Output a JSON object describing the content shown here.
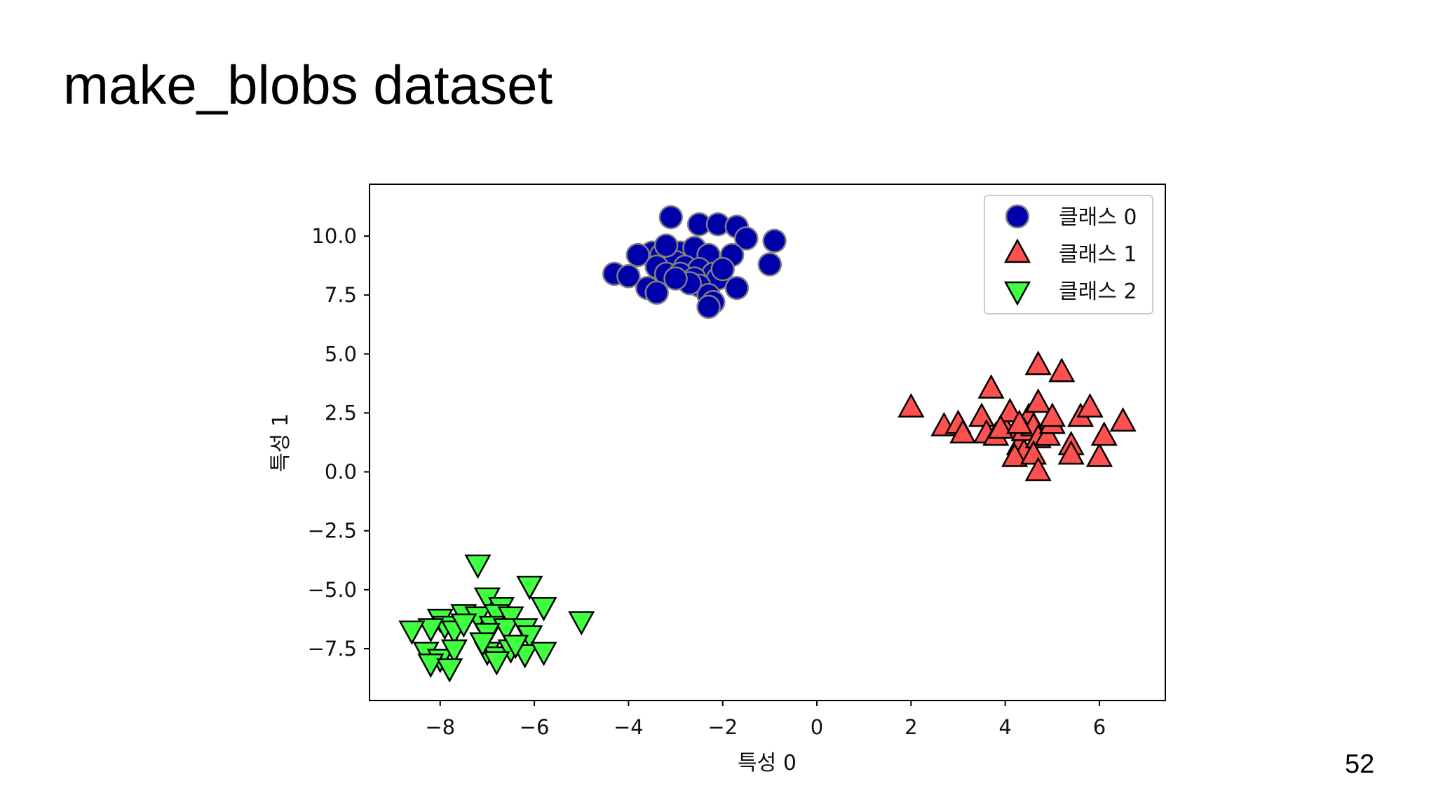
{
  "slide": {
    "title": "make_blobs dataset",
    "page_number": "52"
  },
  "colors": {
    "class0": "#0000aa",
    "class0_edge": "#808080",
    "class1": "#ff5050",
    "class1_edge": "#000000",
    "class2": "#40ff40",
    "class2_edge": "#000000"
  },
  "chart_data": {
    "type": "scatter",
    "title": "",
    "xlabel": "특성 0",
    "ylabel": "특성 1",
    "xlim": [
      -9.5,
      7.4
    ],
    "ylim": [
      -9.7,
      12.2
    ],
    "xticks": [
      -8,
      -6,
      -4,
      -2,
      0,
      2,
      4,
      6
    ],
    "xtick_labels": [
      "−8",
      "−6",
      "−4",
      "−2",
      "0",
      "2",
      "4",
      "6"
    ],
    "yticks": [
      -7.5,
      -5.0,
      -2.5,
      0.0,
      2.5,
      5.0,
      7.5,
      10.0
    ],
    "ytick_labels": [
      "−7.5",
      "−5.0",
      "−2.5",
      "0.0",
      "2.5",
      "5.0",
      "7.5",
      "10.0"
    ],
    "grid": false,
    "legend_position": "top-right",
    "series": [
      {
        "name": "클래스 0",
        "marker": "circle",
        "points": [
          [
            -3.1,
            10.8
          ],
          [
            -2.5,
            10.5
          ],
          [
            -2.1,
            10.5
          ],
          [
            -1.7,
            10.4
          ],
          [
            -1.5,
            9.9
          ],
          [
            -0.9,
            9.8
          ],
          [
            -3.5,
            9.3
          ],
          [
            -3.8,
            9.2
          ],
          [
            -3.3,
            9.2
          ],
          [
            -2.9,
            9.3
          ],
          [
            -2.6,
            9.5
          ],
          [
            -2.3,
            9.2
          ],
          [
            -1.8,
            9.2
          ],
          [
            -3.0,
            8.9
          ],
          [
            -2.8,
            8.7
          ],
          [
            -2.5,
            8.6
          ],
          [
            -2.2,
            8.4
          ],
          [
            -1.0,
            8.8
          ],
          [
            -4.3,
            8.4
          ],
          [
            -4.0,
            8.3
          ],
          [
            -3.4,
            8.7
          ],
          [
            -3.2,
            8.4
          ],
          [
            -2.9,
            8.4
          ],
          [
            -2.6,
            8.2
          ],
          [
            -2.1,
            8.2
          ],
          [
            -3.6,
            7.8
          ],
          [
            -3.4,
            7.6
          ],
          [
            -2.5,
            7.9
          ],
          [
            -2.3,
            7.5
          ],
          [
            -1.7,
            7.8
          ],
          [
            -2.2,
            7.2
          ],
          [
            -2.3,
            7.0
          ],
          [
            -3.2,
            9.6
          ],
          [
            -2.0,
            8.6
          ],
          [
            -2.7,
            8.0
          ],
          [
            -3.0,
            8.2
          ]
        ]
      },
      {
        "name": "클래스 1",
        "marker": "triangle-up",
        "points": [
          [
            2.0,
            2.7
          ],
          [
            2.7,
            1.9
          ],
          [
            3.0,
            2.0
          ],
          [
            3.1,
            1.6
          ],
          [
            3.5,
            2.3
          ],
          [
            3.7,
            3.5
          ],
          [
            3.6,
            1.6
          ],
          [
            3.8,
            1.5
          ],
          [
            4.0,
            1.8
          ],
          [
            4.1,
            2.5
          ],
          [
            4.3,
            1.1
          ],
          [
            4.4,
            0.8
          ],
          [
            4.2,
            0.6
          ],
          [
            4.5,
            2.3
          ],
          [
            4.4,
            1.7
          ],
          [
            4.6,
            1.9
          ],
          [
            4.7,
            1.4
          ],
          [
            4.7,
            2.9
          ],
          [
            4.7,
            4.5
          ],
          [
            4.6,
            0.7
          ],
          [
            4.7,
            0.0
          ],
          [
            4.9,
            1.5
          ],
          [
            5.0,
            2.0
          ],
          [
            5.0,
            2.3
          ],
          [
            5.2,
            4.2
          ],
          [
            5.4,
            1.1
          ],
          [
            5.4,
            0.7
          ],
          [
            5.6,
            2.3
          ],
          [
            5.8,
            2.7
          ],
          [
            6.0,
            0.6
          ],
          [
            6.1,
            1.5
          ],
          [
            6.5,
            2.1
          ],
          [
            3.9,
            1.8
          ],
          [
            4.3,
            2.0
          ]
        ]
      },
      {
        "name": "클래스 2",
        "marker": "triangle-down",
        "points": [
          [
            -7.2,
            -3.9
          ],
          [
            -6.1,
            -4.8
          ],
          [
            -7.0,
            -5.3
          ],
          [
            -6.7,
            -5.7
          ],
          [
            -5.8,
            -5.7
          ],
          [
            -7.5,
            -6.0
          ],
          [
            -7.2,
            -6.1
          ],
          [
            -6.8,
            -6.0
          ],
          [
            -6.5,
            -6.1
          ],
          [
            -8.0,
            -6.2
          ],
          [
            -7.9,
            -6.5
          ],
          [
            -8.2,
            -6.6
          ],
          [
            -8.6,
            -6.7
          ],
          [
            -7.7,
            -6.7
          ],
          [
            -7.5,
            -6.4
          ],
          [
            -6.9,
            -6.5
          ],
          [
            -6.6,
            -6.6
          ],
          [
            -6.2,
            -6.6
          ],
          [
            -6.1,
            -6.9
          ],
          [
            -7.0,
            -6.8
          ],
          [
            -5.0,
            -6.3
          ],
          [
            -8.3,
            -7.6
          ],
          [
            -8.0,
            -7.9
          ],
          [
            -7.7,
            -7.5
          ],
          [
            -7.0,
            -7.6
          ],
          [
            -6.8,
            -7.8
          ],
          [
            -6.5,
            -7.5
          ],
          [
            -6.2,
            -7.7
          ],
          [
            -5.8,
            -7.6
          ],
          [
            -8.2,
            -8.1
          ],
          [
            -7.8,
            -8.3
          ],
          [
            -6.8,
            -8.0
          ],
          [
            -7.1,
            -7.2
          ],
          [
            -6.4,
            -7.3
          ]
        ]
      }
    ]
  }
}
